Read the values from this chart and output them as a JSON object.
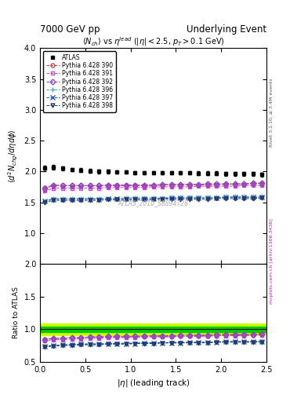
{
  "title_left": "7000 GeV pp",
  "title_right": "Underlying Event",
  "plot_title": "$\\langle N_{ch}\\rangle$ vs $\\eta^{lead}$ ($|\\eta| < 2.5$, $p_T > 0.1$ GeV)",
  "xlabel": "$|\\eta|$ (leading track)",
  "ylabel_main": "$\\langle d^2 N_{chg}/d\\eta d\\phi\\rangle$",
  "ylabel_ratio": "Ratio to ATLAS",
  "watermark": "ATLAS_2010_S8894728",
  "right_label_top": "Rivet 3.1.10, ≥ 3.4M events",
  "right_label_bottom": "mcplots.cern.ch [arXiv:1306.3436]",
  "xlim": [
    0,
    2.5
  ],
  "ylim_main": [
    0.5,
    4.0
  ],
  "ylim_ratio": [
    0.5,
    2.0
  ],
  "band_color_green": "#00cc00",
  "band_color_yellow": "#ccff00",
  "series": [
    {
      "label": "ATLAS",
      "color": "#000000",
      "marker": "s",
      "filled": true,
      "linestyle": "none",
      "x": [
        0.05,
        0.15,
        0.25,
        0.35,
        0.45,
        0.55,
        0.65,
        0.75,
        0.85,
        0.95,
        1.05,
        1.15,
        1.25,
        1.35,
        1.45,
        1.55,
        1.65,
        1.75,
        1.85,
        1.95,
        2.05,
        2.15,
        2.25,
        2.35,
        2.45
      ],
      "y": [
        2.05,
        2.07,
        2.05,
        2.03,
        2.02,
        2.01,
        2.0,
        2.0,
        1.99,
        1.99,
        1.98,
        1.98,
        1.98,
        1.98,
        1.98,
        1.98,
        1.98,
        1.97,
        1.97,
        1.97,
        1.96,
        1.96,
        1.96,
        1.96,
        1.95
      ],
      "yerr": [
        0.04,
        0.04,
        0.03,
        0.03,
        0.03,
        0.03,
        0.03,
        0.03,
        0.03,
        0.03,
        0.03,
        0.03,
        0.03,
        0.03,
        0.03,
        0.03,
        0.03,
        0.03,
        0.03,
        0.03,
        0.03,
        0.03,
        0.03,
        0.03,
        0.03
      ]
    },
    {
      "label": "Pythia 6.428 390",
      "color": "#cc4444",
      "marker": "o",
      "filled": false,
      "linestyle": "--",
      "x": [
        0.05,
        0.15,
        0.25,
        0.35,
        0.45,
        0.55,
        0.65,
        0.75,
        0.85,
        0.95,
        1.05,
        1.15,
        1.25,
        1.35,
        1.45,
        1.55,
        1.65,
        1.75,
        1.85,
        1.95,
        2.05,
        2.15,
        2.25,
        2.35,
        2.45
      ],
      "y": [
        1.74,
        1.78,
        1.77,
        1.77,
        1.77,
        1.77,
        1.77,
        1.77,
        1.77,
        1.77,
        1.77,
        1.77,
        1.77,
        1.78,
        1.78,
        1.78,
        1.78,
        1.78,
        1.78,
        1.78,
        1.79,
        1.79,
        1.79,
        1.8,
        1.8
      ],
      "yerr": [
        0.01,
        0.01,
        0.01,
        0.01,
        0.01,
        0.01,
        0.01,
        0.01,
        0.01,
        0.01,
        0.01,
        0.01,
        0.01,
        0.01,
        0.01,
        0.01,
        0.01,
        0.01,
        0.01,
        0.01,
        0.01,
        0.01,
        0.01,
        0.01,
        0.01
      ]
    },
    {
      "label": "Pythia 6.428 391",
      "color": "#cc44cc",
      "marker": "s",
      "filled": false,
      "linestyle": "--",
      "x": [
        0.05,
        0.15,
        0.25,
        0.35,
        0.45,
        0.55,
        0.65,
        0.75,
        0.85,
        0.95,
        1.05,
        1.15,
        1.25,
        1.35,
        1.45,
        1.55,
        1.65,
        1.75,
        1.85,
        1.95,
        2.05,
        2.15,
        2.25,
        2.35,
        2.45
      ],
      "y": [
        1.68,
        1.73,
        1.73,
        1.73,
        1.73,
        1.73,
        1.73,
        1.74,
        1.74,
        1.74,
        1.74,
        1.74,
        1.75,
        1.75,
        1.75,
        1.75,
        1.75,
        1.76,
        1.76,
        1.76,
        1.76,
        1.76,
        1.77,
        1.77,
        1.77
      ],
      "yerr": [
        0.01,
        0.01,
        0.01,
        0.01,
        0.01,
        0.01,
        0.01,
        0.01,
        0.01,
        0.01,
        0.01,
        0.01,
        0.01,
        0.01,
        0.01,
        0.01,
        0.01,
        0.01,
        0.01,
        0.01,
        0.01,
        0.01,
        0.01,
        0.01,
        0.01
      ]
    },
    {
      "label": "Pythia 6.428 392",
      "color": "#8844cc",
      "marker": "D",
      "filled": false,
      "linestyle": "--",
      "x": [
        0.05,
        0.15,
        0.25,
        0.35,
        0.45,
        0.55,
        0.65,
        0.75,
        0.85,
        0.95,
        1.05,
        1.15,
        1.25,
        1.35,
        1.45,
        1.55,
        1.65,
        1.75,
        1.85,
        1.95,
        2.05,
        2.15,
        2.25,
        2.35,
        2.45
      ],
      "y": [
        1.72,
        1.77,
        1.77,
        1.77,
        1.77,
        1.77,
        1.77,
        1.78,
        1.78,
        1.78,
        1.78,
        1.78,
        1.78,
        1.79,
        1.79,
        1.79,
        1.79,
        1.79,
        1.8,
        1.8,
        1.8,
        1.8,
        1.8,
        1.81,
        1.81
      ],
      "yerr": [
        0.01,
        0.01,
        0.01,
        0.01,
        0.01,
        0.01,
        0.01,
        0.01,
        0.01,
        0.01,
        0.01,
        0.01,
        0.01,
        0.01,
        0.01,
        0.01,
        0.01,
        0.01,
        0.01,
        0.01,
        0.01,
        0.01,
        0.01,
        0.01,
        0.01
      ]
    },
    {
      "label": "Pythia 6.428 396",
      "color": "#44aacc",
      "marker": "+",
      "filled": false,
      "linestyle": "--",
      "x": [
        0.05,
        0.15,
        0.25,
        0.35,
        0.45,
        0.55,
        0.65,
        0.75,
        0.85,
        0.95,
        1.05,
        1.15,
        1.25,
        1.35,
        1.45,
        1.55,
        1.65,
        1.75,
        1.85,
        1.95,
        2.05,
        2.15,
        2.25,
        2.35,
        2.45
      ],
      "y": [
        1.52,
        1.56,
        1.56,
        1.56,
        1.56,
        1.56,
        1.56,
        1.56,
        1.56,
        1.57,
        1.57,
        1.57,
        1.57,
        1.57,
        1.58,
        1.58,
        1.58,
        1.58,
        1.58,
        1.58,
        1.59,
        1.59,
        1.59,
        1.59,
        1.6
      ],
      "yerr": [
        0.01,
        0.01,
        0.01,
        0.01,
        0.01,
        0.01,
        0.01,
        0.01,
        0.01,
        0.01,
        0.01,
        0.01,
        0.01,
        0.01,
        0.01,
        0.01,
        0.01,
        0.01,
        0.01,
        0.01,
        0.01,
        0.01,
        0.01,
        0.01,
        0.01
      ]
    },
    {
      "label": "Pythia 6.428 397",
      "color": "#2255aa",
      "marker": "x",
      "filled": false,
      "linestyle": "--",
      "x": [
        0.05,
        0.15,
        0.25,
        0.35,
        0.45,
        0.55,
        0.65,
        0.75,
        0.85,
        0.95,
        1.05,
        1.15,
        1.25,
        1.35,
        1.45,
        1.55,
        1.65,
        1.75,
        1.85,
        1.95,
        2.05,
        2.15,
        2.25,
        2.35,
        2.45
      ],
      "y": [
        1.52,
        1.55,
        1.55,
        1.55,
        1.55,
        1.55,
        1.55,
        1.56,
        1.56,
        1.56,
        1.56,
        1.56,
        1.56,
        1.56,
        1.57,
        1.57,
        1.57,
        1.57,
        1.57,
        1.57,
        1.58,
        1.58,
        1.58,
        1.58,
        1.58
      ],
      "yerr": [
        0.01,
        0.01,
        0.01,
        0.01,
        0.01,
        0.01,
        0.01,
        0.01,
        0.01,
        0.01,
        0.01,
        0.01,
        0.01,
        0.01,
        0.01,
        0.01,
        0.01,
        0.01,
        0.01,
        0.01,
        0.01,
        0.01,
        0.01,
        0.01,
        0.01
      ]
    },
    {
      "label": "Pythia 6.428 398",
      "color": "#223366",
      "marker": "v",
      "filled": false,
      "linestyle": "--",
      "x": [
        0.05,
        0.15,
        0.25,
        0.35,
        0.45,
        0.55,
        0.65,
        0.75,
        0.85,
        0.95,
        1.05,
        1.15,
        1.25,
        1.35,
        1.45,
        1.55,
        1.65,
        1.75,
        1.85,
        1.95,
        2.05,
        2.15,
        2.25,
        2.35,
        2.45
      ],
      "y": [
        1.5,
        1.53,
        1.53,
        1.53,
        1.53,
        1.53,
        1.53,
        1.54,
        1.54,
        1.54,
        1.54,
        1.54,
        1.54,
        1.55,
        1.55,
        1.55,
        1.55,
        1.55,
        1.55,
        1.56,
        1.56,
        1.56,
        1.56,
        1.56,
        1.57
      ],
      "yerr": [
        0.01,
        0.01,
        0.01,
        0.01,
        0.01,
        0.01,
        0.01,
        0.01,
        0.01,
        0.01,
        0.01,
        0.01,
        0.01,
        0.01,
        0.01,
        0.01,
        0.01,
        0.01,
        0.01,
        0.01,
        0.01,
        0.01,
        0.01,
        0.01,
        0.01
      ]
    }
  ],
  "ratio_band_green": [
    0.96,
    1.04
  ],
  "ratio_band_yellow": [
    0.91,
    1.09
  ],
  "ratio_series": [
    {
      "idx": 1,
      "y": [
        0.85,
        0.86,
        0.86,
        0.87,
        0.87,
        0.88,
        0.88,
        0.88,
        0.88,
        0.88,
        0.89,
        0.89,
        0.89,
        0.89,
        0.89,
        0.89,
        0.89,
        0.9,
        0.9,
        0.9,
        0.91,
        0.91,
        0.91,
        0.91,
        0.92
      ]
    },
    {
      "idx": 2,
      "y": [
        0.82,
        0.84,
        0.84,
        0.85,
        0.85,
        0.86,
        0.86,
        0.87,
        0.87,
        0.87,
        0.87,
        0.88,
        0.88,
        0.88,
        0.88,
        0.89,
        0.89,
        0.89,
        0.89,
        0.9,
        0.9,
        0.9,
        0.9,
        0.91,
        0.91
      ]
    },
    {
      "idx": 3,
      "y": [
        0.84,
        0.86,
        0.86,
        0.87,
        0.87,
        0.88,
        0.88,
        0.89,
        0.89,
        0.89,
        0.89,
        0.9,
        0.9,
        0.9,
        0.9,
        0.91,
        0.91,
        0.91,
        0.91,
        0.92,
        0.92,
        0.92,
        0.92,
        0.92,
        0.93
      ]
    },
    {
      "idx": 4,
      "y": [
        0.74,
        0.75,
        0.76,
        0.77,
        0.77,
        0.78,
        0.78,
        0.78,
        0.78,
        0.79,
        0.79,
        0.79,
        0.79,
        0.79,
        0.8,
        0.8,
        0.8,
        0.8,
        0.8,
        0.81,
        0.81,
        0.81,
        0.81,
        0.81,
        0.82
      ]
    },
    {
      "idx": 5,
      "y": [
        0.74,
        0.75,
        0.76,
        0.76,
        0.77,
        0.77,
        0.77,
        0.78,
        0.78,
        0.78,
        0.78,
        0.79,
        0.79,
        0.79,
        0.79,
        0.79,
        0.8,
        0.8,
        0.8,
        0.8,
        0.81,
        0.81,
        0.81,
        0.81,
        0.81
      ]
    },
    {
      "idx": 6,
      "y": [
        0.73,
        0.74,
        0.75,
        0.75,
        0.76,
        0.76,
        0.76,
        0.77,
        0.77,
        0.77,
        0.78,
        0.78,
        0.78,
        0.79,
        0.79,
        0.79,
        0.79,
        0.79,
        0.79,
        0.8,
        0.8,
        0.8,
        0.8,
        0.8,
        0.8
      ]
    }
  ]
}
